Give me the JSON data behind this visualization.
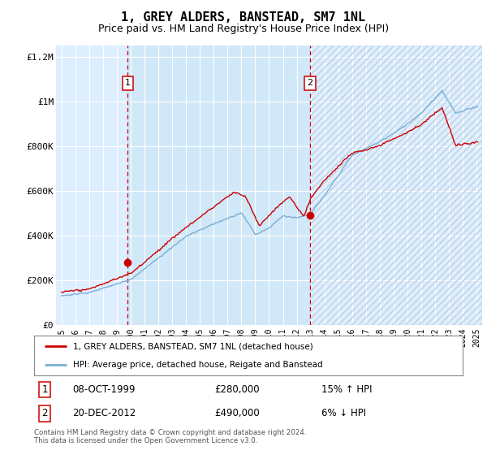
{
  "title": "1, GREY ALDERS, BANSTEAD, SM7 1NL",
  "subtitle": "Price paid vs. HM Land Registry's House Price Index (HPI)",
  "title_fontsize": 11,
  "subtitle_fontsize": 9,
  "bg_color": "#ddeeff",
  "shade_color": "#d0e8f8",
  "grid_color": "#ffffff",
  "legend_label_red": "1, GREY ALDERS, BANSTEAD, SM7 1NL (detached house)",
  "legend_label_blue": "HPI: Average price, detached house, Reigate and Banstead",
  "footer": "Contains HM Land Registry data © Crown copyright and database right 2024.\nThis data is licensed under the Open Government Licence v3.0.",
  "annotation1": {
    "num": "1",
    "date": "08-OCT-1999",
    "price": "£280,000",
    "hpi": "15% ↑ HPI",
    "x": 1999.77
  },
  "annotation2": {
    "num": "2",
    "date": "20-DEC-2012",
    "price": "£490,000",
    "hpi": "6% ↓ HPI",
    "x": 2012.97
  },
  "ylim": [
    0,
    1250000
  ],
  "yticks": [
    0,
    200000,
    400000,
    600000,
    800000,
    1000000,
    1200000
  ],
  "ytick_labels": [
    "£0",
    "£200K",
    "£400K",
    "£600K",
    "£800K",
    "£1M",
    "£1.2M"
  ],
  "sale1_year": 1999.77,
  "sale1_price": 280000,
  "sale2_year": 2012.97,
  "sale2_price": 490000,
  "red_color": "#cc0000",
  "blue_color": "#7ab0d4",
  "xlim_left": 1994.6,
  "xlim_right": 2025.4
}
